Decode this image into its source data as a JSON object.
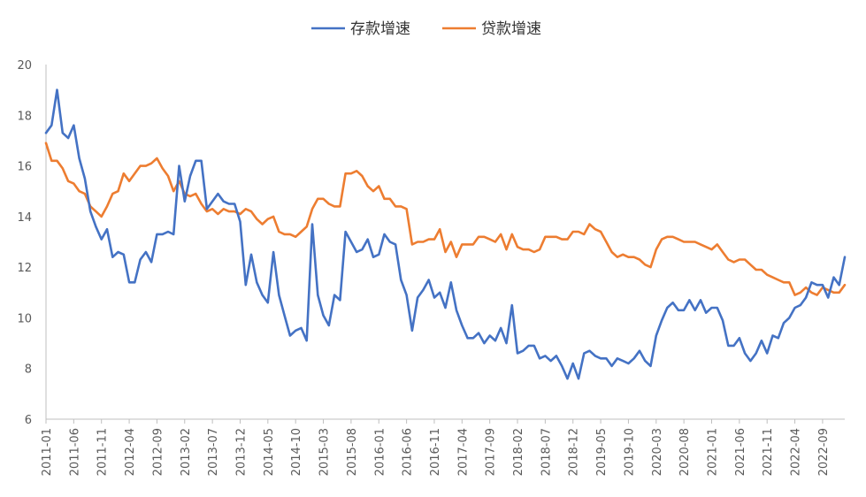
{
  "chart_data": {
    "type": "line",
    "x_start": "2011-01",
    "x_tick_labels": [
      "2011-01",
      "2011-06",
      "2011-11",
      "2012-04",
      "2012-09",
      "2013-02",
      "2013-07",
      "2013-12",
      "2014-05",
      "2014-10",
      "2015-03",
      "2015-08",
      "2016-01",
      "2016-06",
      "2016-11",
      "2017-04",
      "2017-09",
      "2018-02",
      "2018-07",
      "2018-12",
      "2019-05",
      "2019-10",
      "2020-03",
      "2020-08",
      "2021-01",
      "2021-06",
      "2021-11",
      "2022-04",
      "2022-09"
    ],
    "ylim": [
      6,
      20
    ],
    "y_ticks": [
      6,
      8,
      10,
      12,
      14,
      16,
      18,
      20
    ],
    "grid": false,
    "legend_position": "top",
    "series": [
      {
        "name": "存款增速",
        "color": "#4472C4",
        "values": [
          17.3,
          17.6,
          19.0,
          17.3,
          17.1,
          17.6,
          16.3,
          15.5,
          14.2,
          13.6,
          13.1,
          13.5,
          12.4,
          12.6,
          12.5,
          11.4,
          11.4,
          12.3,
          12.6,
          12.2,
          13.3,
          13.3,
          13.4,
          13.3,
          16.0,
          14.6,
          15.6,
          16.2,
          16.2,
          14.3,
          14.6,
          14.9,
          14.6,
          14.5,
          14.5,
          13.8,
          11.3,
          12.5,
          11.4,
          10.9,
          10.6,
          12.6,
          10.9,
          10.1,
          9.3,
          9.5,
          9.6,
          9.1,
          13.7,
          10.9,
          10.1,
          9.7,
          10.9,
          10.7,
          13.4,
          13.0,
          12.6,
          12.7,
          13.1,
          12.4,
          12.5,
          13.3,
          13.0,
          12.9,
          11.5,
          10.9,
          9.5,
          10.8,
          11.1,
          11.5,
          10.8,
          11.0,
          10.4,
          11.4,
          10.3,
          9.7,
          9.2,
          9.2,
          9.4,
          9.0,
          9.3,
          9.1,
          9.6,
          9.0,
          10.5,
          8.6,
          8.7,
          8.9,
          8.9,
          8.4,
          8.5,
          8.3,
          8.5,
          8.1,
          7.6,
          8.2,
          7.6,
          8.6,
          8.7,
          8.5,
          8.4,
          8.4,
          8.1,
          8.4,
          8.3,
          8.2,
          8.4,
          8.7,
          8.3,
          8.1,
          9.3,
          9.9,
          10.4,
          10.6,
          10.3,
          10.3,
          10.7,
          10.3,
          10.7,
          10.2,
          10.4,
          10.4,
          9.9,
          8.9,
          8.9,
          9.2,
          8.6,
          8.3,
          8.6,
          9.1,
          8.6,
          9.3,
          9.2,
          9.8,
          10.0,
          10.4,
          10.5,
          10.8,
          11.4,
          11.3,
          11.3,
          10.8,
          11.6,
          11.3,
          12.4
        ]
      },
      {
        "name": "贷款增速",
        "color": "#ED7D31",
        "values": [
          16.9,
          16.2,
          16.2,
          15.9,
          15.4,
          15.3,
          15.0,
          14.9,
          14.4,
          14.2,
          14.0,
          14.4,
          14.9,
          15.0,
          15.7,
          15.4,
          15.7,
          16.0,
          16.0,
          16.1,
          16.3,
          15.9,
          15.6,
          15.0,
          15.4,
          14.9,
          14.8,
          14.9,
          14.5,
          14.2,
          14.3,
          14.1,
          14.3,
          14.2,
          14.2,
          14.1,
          14.3,
          14.2,
          13.9,
          13.7,
          13.9,
          14.0,
          13.4,
          13.3,
          13.3,
          13.2,
          13.4,
          13.6,
          14.3,
          14.7,
          14.7,
          14.5,
          14.4,
          14.4,
          15.7,
          15.7,
          15.8,
          15.6,
          15.2,
          15.0,
          15.2,
          14.7,
          14.7,
          14.4,
          14.4,
          14.3,
          12.9,
          13.0,
          13.0,
          13.1,
          13.1,
          13.5,
          12.6,
          13.0,
          12.4,
          12.9,
          12.9,
          12.9,
          13.2,
          13.2,
          13.1,
          13.0,
          13.3,
          12.7,
          13.3,
          12.8,
          12.7,
          12.7,
          12.6,
          12.7,
          13.2,
          13.2,
          13.2,
          13.1,
          13.1,
          13.4,
          13.4,
          13.3,
          13.7,
          13.5,
          13.4,
          13.0,
          12.6,
          12.4,
          12.5,
          12.4,
          12.4,
          12.3,
          12.1,
          12.0,
          12.7,
          13.1,
          13.2,
          13.2,
          13.1,
          13.0,
          13.0,
          13.0,
          12.9,
          12.8,
          12.7,
          12.9,
          12.6,
          12.3,
          12.2,
          12.3,
          12.3,
          12.1,
          11.9,
          11.9,
          11.7,
          11.6,
          11.5,
          11.4,
          11.4,
          10.9,
          11.0,
          11.2,
          11.0,
          10.9,
          11.2,
          11.1,
          11.0,
          11.0,
          11.3
        ]
      }
    ]
  }
}
